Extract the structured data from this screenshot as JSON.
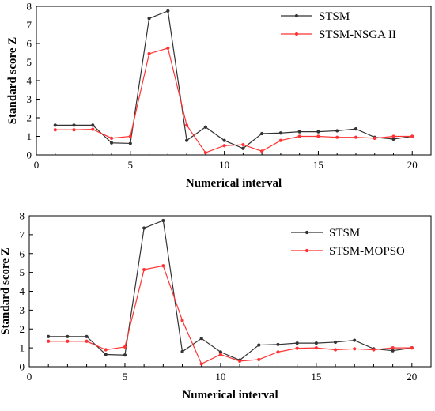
{
  "chart_data": [
    {
      "type": "line",
      "x": [
        1,
        2,
        3,
        4,
        5,
        6,
        7,
        8,
        9,
        10,
        11,
        12,
        13,
        14,
        15,
        16,
        17,
        18,
        19,
        20
      ],
      "series": [
        {
          "name": "STSM",
          "color": "#333333",
          "values": [
            1.6,
            1.6,
            1.6,
            0.65,
            0.62,
            7.35,
            7.75,
            0.78,
            1.5,
            0.78,
            0.35,
            1.15,
            1.18,
            1.25,
            1.25,
            1.3,
            1.4,
            0.95,
            0.85,
            1.0
          ]
        },
        {
          "name": "STSM-NSGA II",
          "color": "#ff3333",
          "values": [
            1.35,
            1.35,
            1.38,
            0.9,
            1.0,
            5.45,
            5.75,
            1.6,
            0.12,
            0.5,
            0.55,
            0.2,
            0.78,
            1.0,
            1.0,
            0.95,
            0.95,
            0.9,
            1.0,
            1.0
          ]
        }
      ],
      "xlabel": "Numerical interval",
      "ylabel": "Standard score Z",
      "xlim": [
        0,
        21
      ],
      "ylim": [
        0,
        8
      ],
      "xticks": [
        0,
        5,
        10,
        15,
        20
      ],
      "yticks": [
        0,
        1,
        2,
        3,
        4,
        5,
        6,
        7,
        8
      ],
      "legend": "top-right",
      "grid": false
    },
    {
      "type": "line",
      "x": [
        1,
        2,
        3,
        4,
        5,
        6,
        7,
        8,
        9,
        10,
        11,
        12,
        13,
        14,
        15,
        16,
        17,
        18,
        19,
        20
      ],
      "series": [
        {
          "name": "STSM",
          "color": "#333333",
          "values": [
            1.6,
            1.6,
            1.6,
            0.65,
            0.62,
            7.35,
            7.75,
            0.8,
            1.5,
            0.78,
            0.35,
            1.15,
            1.18,
            1.25,
            1.25,
            1.3,
            1.4,
            0.95,
            0.85,
            1.0
          ]
        },
        {
          "name": "STSM-MOPSO",
          "color": "#ff3333",
          "values": [
            1.35,
            1.35,
            1.35,
            0.9,
            1.05,
            5.15,
            5.35,
            2.45,
            0.15,
            0.65,
            0.3,
            0.38,
            0.78,
            0.98,
            1.0,
            0.9,
            0.95,
            0.9,
            1.0,
            1.0
          ]
        }
      ],
      "xlabel": "Numerical interval",
      "ylabel": "Standard score Z",
      "xlim": [
        0,
        21
      ],
      "ylim": [
        0,
        8
      ],
      "xticks": [
        0,
        5,
        10,
        15,
        20
      ],
      "yticks": [
        0,
        1,
        2,
        3,
        4,
        5,
        6,
        7,
        8
      ],
      "legend": "top-right",
      "grid": false
    }
  ]
}
